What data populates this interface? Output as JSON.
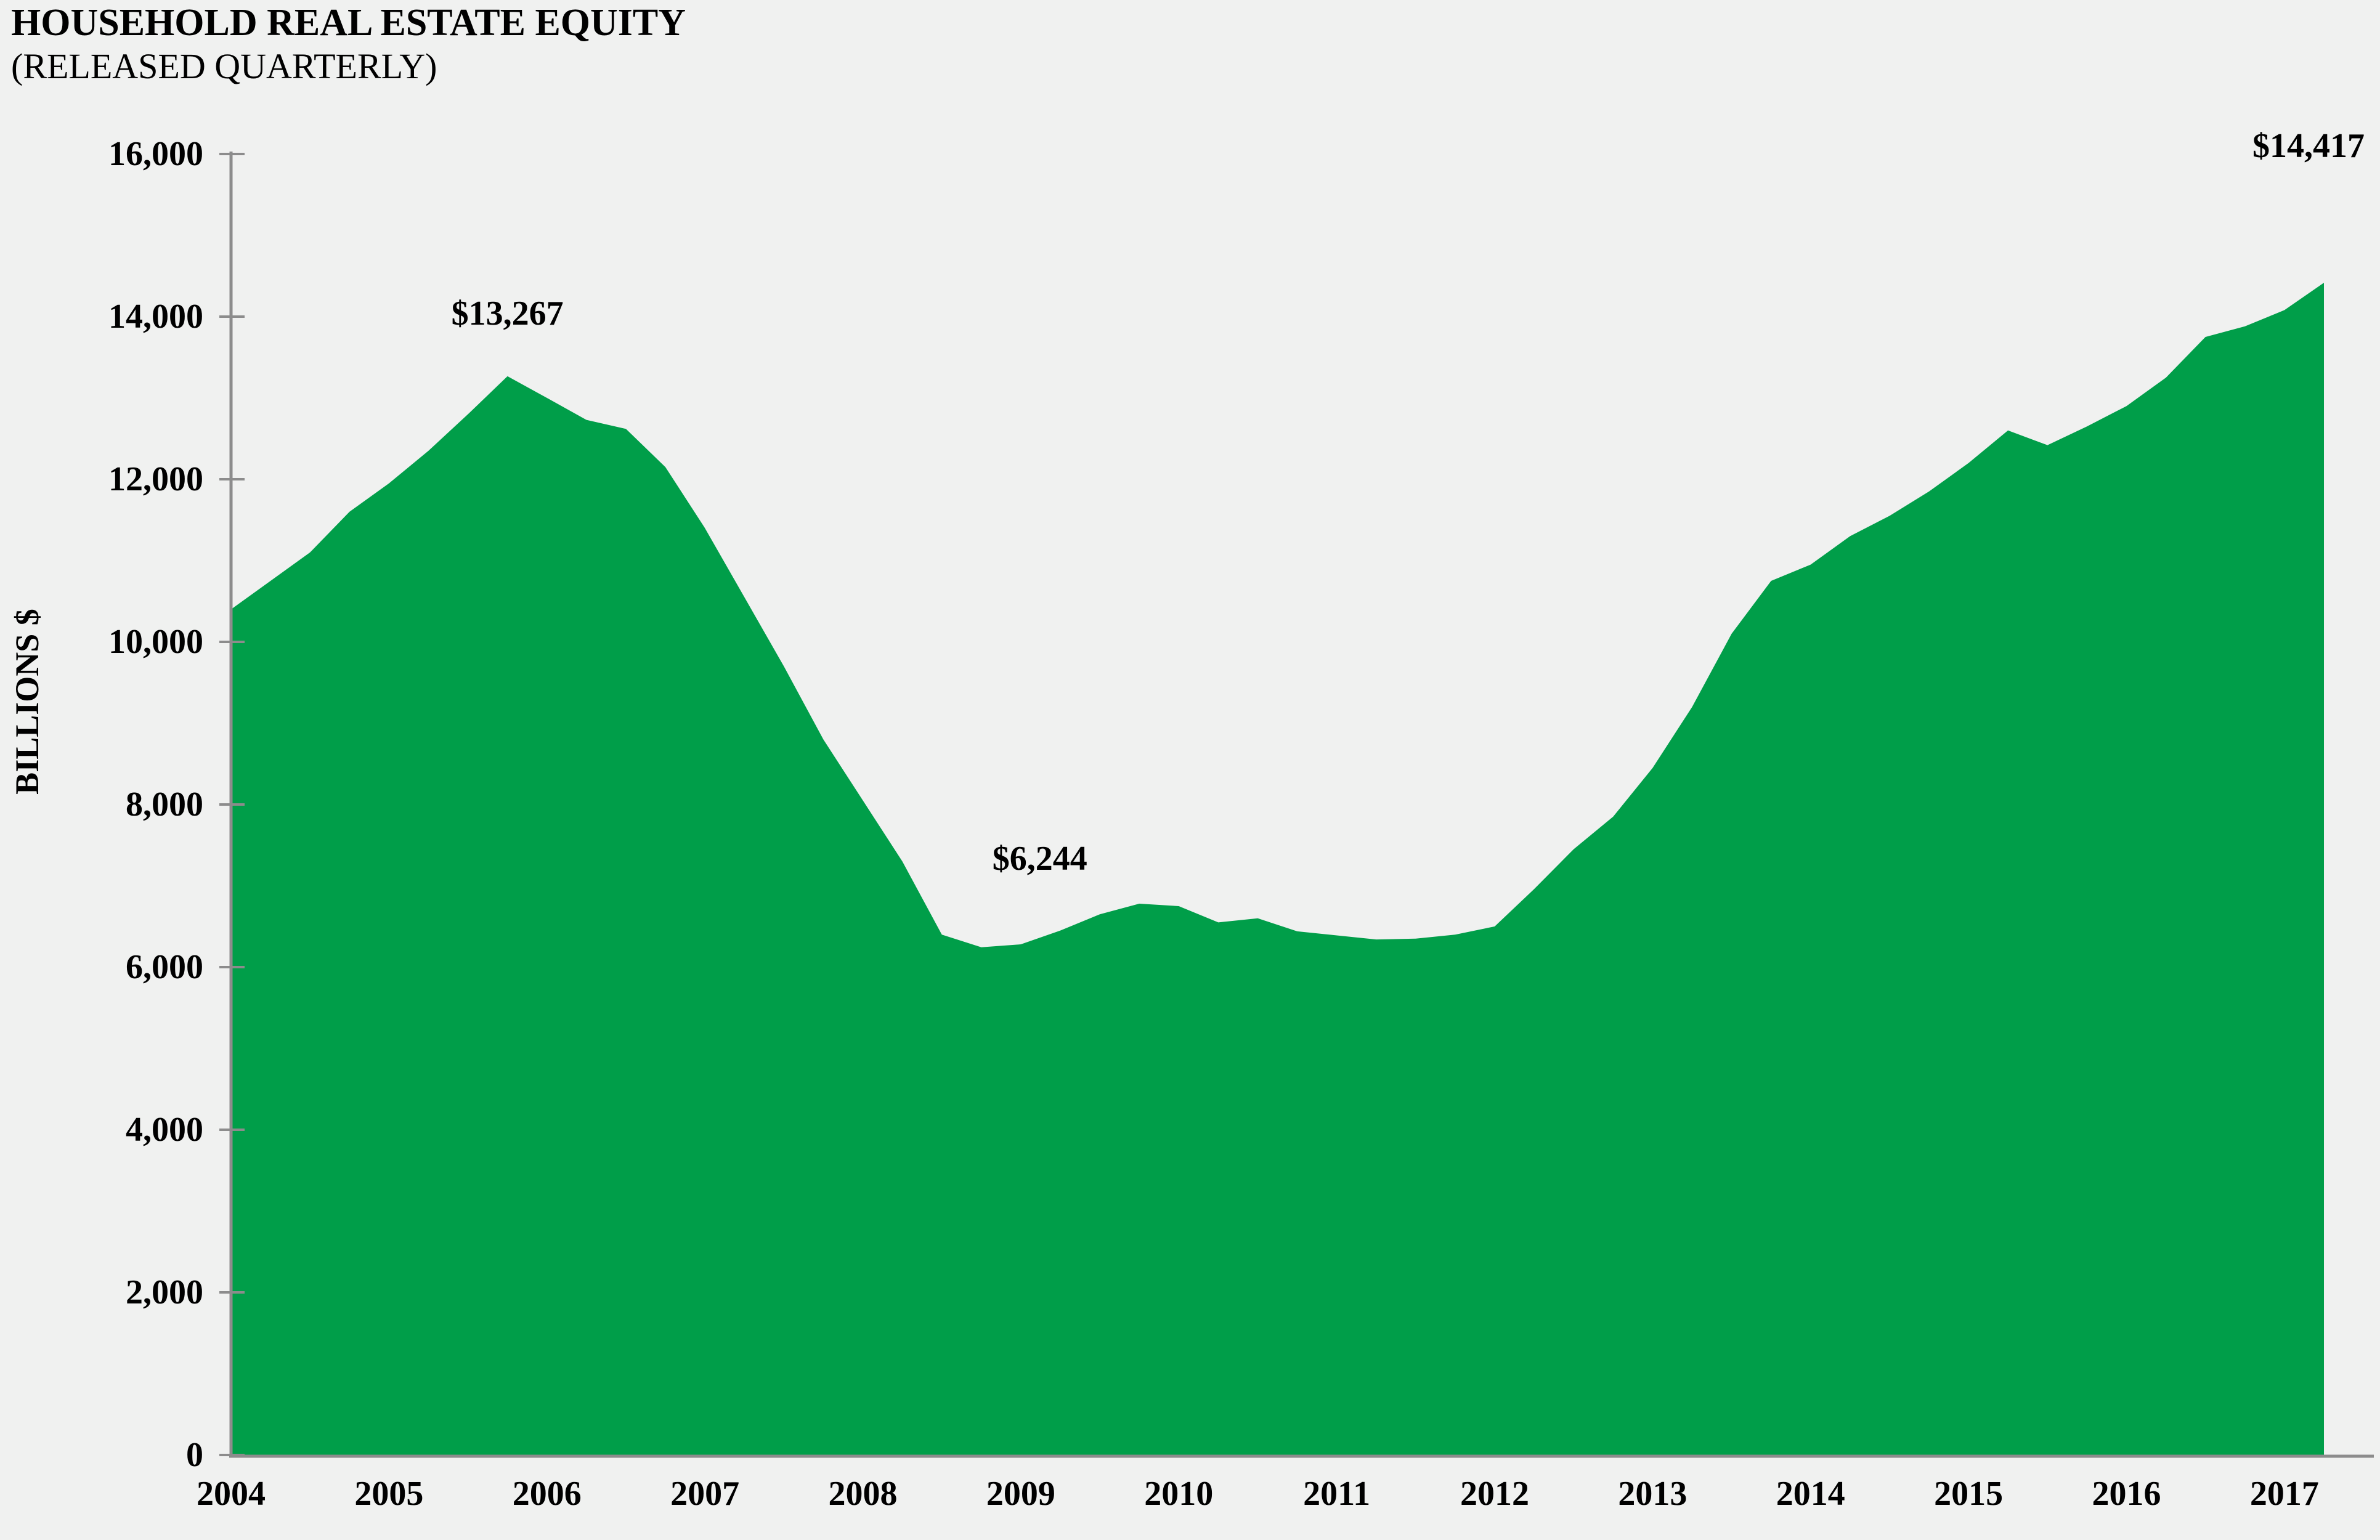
{
  "title": "HOUSEHOLD REAL ESTATE EQUITY",
  "subtitle": "(RELEASED QUARTERLY)",
  "y_axis": {
    "label": "BILLIONS $",
    "tick_values": [
      16000,
      14000,
      12000,
      10000,
      8000,
      6000,
      4000,
      2000,
      0
    ],
    "tick_labels": [
      "16,000",
      "14,000",
      "12,000",
      "10,000",
      "8,000",
      "6,000",
      "4,000",
      "2,000",
      "0"
    ]
  },
  "x_axis": {
    "tick_labels": [
      "2004",
      "2005",
      "2006",
      "2007",
      "2008",
      "2009",
      "2010",
      "2011",
      "2012",
      "2013",
      "2014",
      "2015",
      "2016",
      "2017"
    ]
  },
  "annotations": [
    {
      "text": "$13,267",
      "value": 13267,
      "position": "2005 Q4",
      "index": 7
    },
    {
      "text": "$6,244",
      "value": 6244,
      "position": "2008 Q4",
      "index": 19
    },
    {
      "text": "$14,417",
      "value": 14417,
      "position": "2017 Q2",
      "index": 53
    }
  ],
  "colors": {
    "area": "#009E49",
    "axis": "#8C8C8C",
    "background": "#F0F1F0",
    "text": "#000000"
  },
  "chart_data": {
    "type": "area",
    "title": "HOUSEHOLD REAL ESTATE EQUITY",
    "subtitle": "(RELEASED QUARTERLY)",
    "ylabel": "BILLIONS $",
    "xlabel": "",
    "unit": "billions of US dollars",
    "frequency": "quarterly",
    "x_start": "2004 Q1",
    "x_end": "2017 Q2",
    "ylim": [
      0,
      16000
    ],
    "ytick_step": 2000,
    "grid": false,
    "legend": false,
    "categories_years": [
      2004,
      2005,
      2006,
      2007,
      2008,
      2009,
      2010,
      2011,
      2012,
      2013,
      2014,
      2015,
      2016,
      2017
    ],
    "series": [
      {
        "name": "Household real estate equity",
        "color": "#009E49",
        "values": [
          10400,
          10750,
          11100,
          11600,
          11950,
          12350,
          12800,
          13267,
          13000,
          12730,
          12620,
          12150,
          11400,
          10550,
          9700,
          8800,
          8050,
          7300,
          6400,
          6244,
          6280,
          6450,
          6650,
          6780,
          6750,
          6550,
          6600,
          6440,
          6390,
          6340,
          6350,
          6400,
          6500,
          6960,
          7450,
          7850,
          8450,
          9200,
          10100,
          10750,
          10950,
          11300,
          11550,
          11850,
          12200,
          12600,
          12420,
          12650,
          12900,
          13250,
          13750,
          13880,
          14080,
          14417
        ]
      }
    ],
    "labeled_points": [
      {
        "label": "$13,267",
        "quarter": "2005 Q4",
        "value": 13267
      },
      {
        "label": "$6,244",
        "quarter": "2008 Q4",
        "value": 6244
      },
      {
        "label": "$14,417",
        "quarter": "2017 Q2",
        "value": 14417
      }
    ]
  }
}
